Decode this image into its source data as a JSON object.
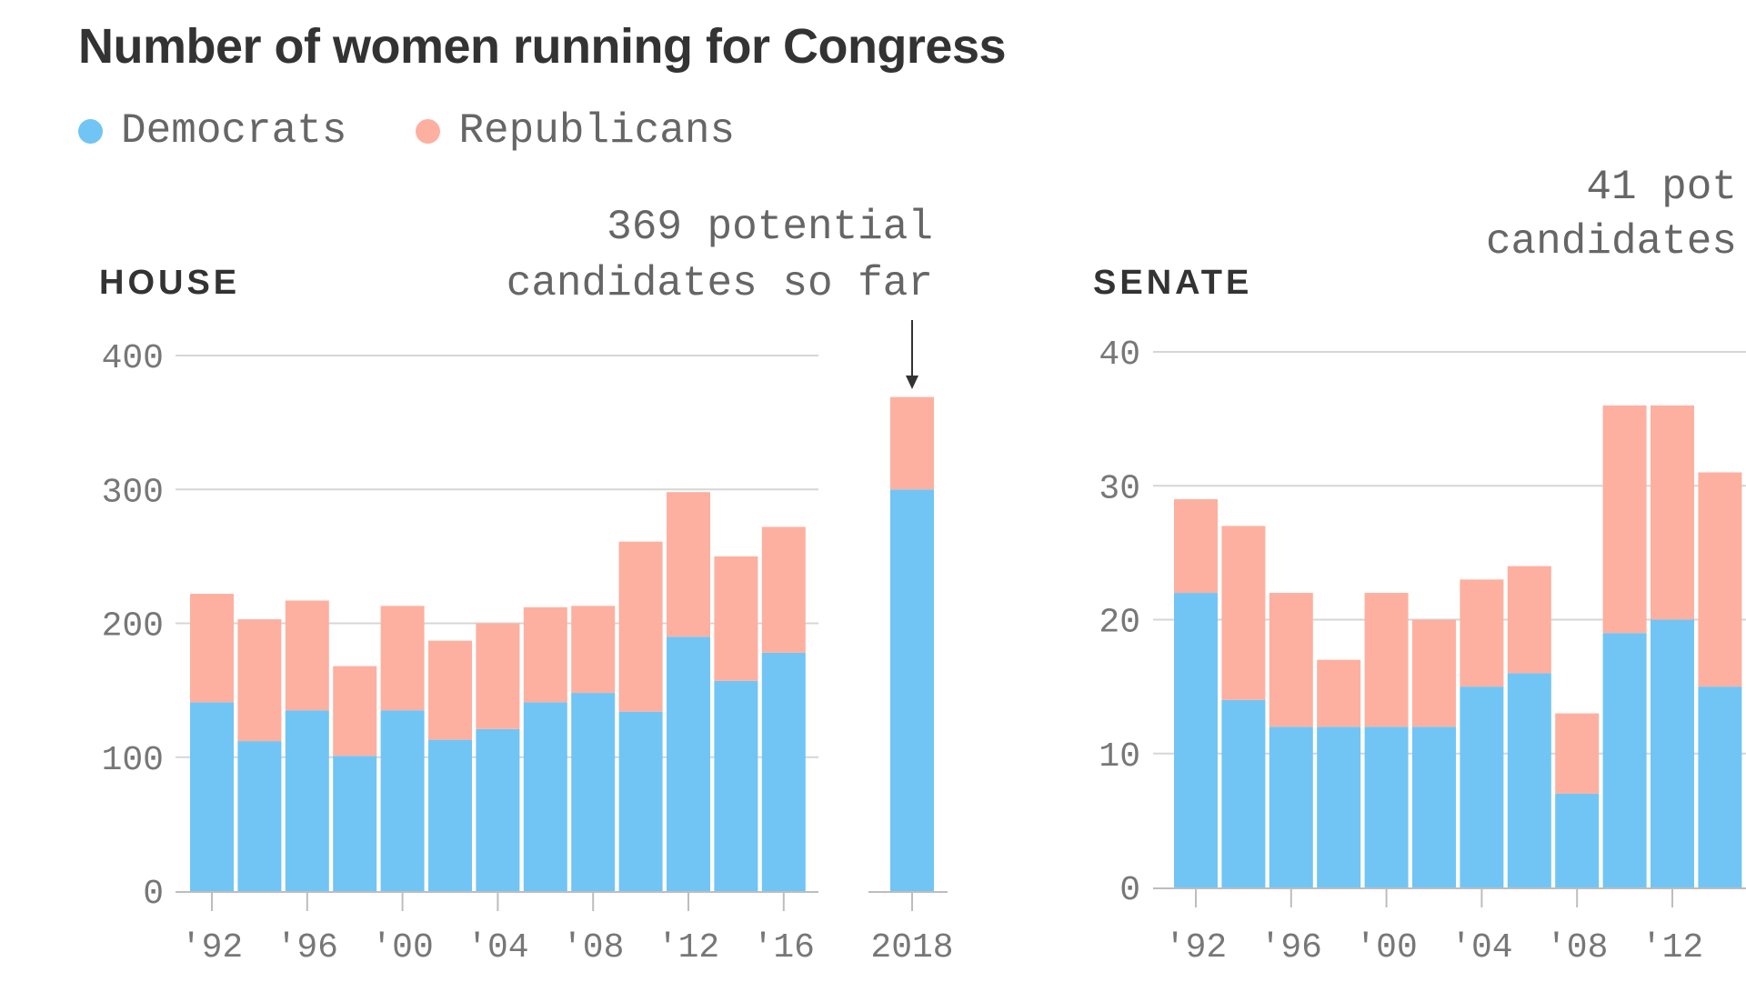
{
  "title": "Number of women running for Congress",
  "colors": {
    "dem": "#70c5f5",
    "rep": "#fdb0a0",
    "grid": "#d6d6d6",
    "axis": "#bdbdbd",
    "arrow": "#333333"
  },
  "legend": [
    {
      "label": "Democrats",
      "color": "#70c5f5"
    },
    {
      "label": "Republicans",
      "color": "#fdb0a0"
    }
  ],
  "chart_data": [
    {
      "type": "bar",
      "stacked": true,
      "title": "HOUSE",
      "categories": [
        "1992",
        "1994",
        "1996",
        "1998",
        "2000",
        "2002",
        "2004",
        "2006",
        "2008",
        "2010",
        "2012",
        "2014",
        "2016",
        "2018"
      ],
      "x_tick_labels": [
        "'92",
        "'96",
        "'00",
        "'04",
        "'08",
        "'12",
        "'16",
        "2018"
      ],
      "series": [
        {
          "name": "Democrats",
          "values": [
            141,
            112,
            135,
            101,
            135,
            113,
            121,
            141,
            148,
            134,
            190,
            157,
            178,
            300
          ]
        },
        {
          "name": "Republicans",
          "values": [
            81,
            91,
            82,
            67,
            78,
            74,
            79,
            71,
            65,
            127,
            108,
            93,
            94,
            69
          ]
        }
      ],
      "ylim": [
        0,
        400
      ],
      "y_ticks": [
        0,
        100,
        200,
        300,
        400
      ],
      "grid": true,
      "annotation": {
        "lines": [
          "369 potential",
          "candidates so far"
        ],
        "target": "2018"
      }
    },
    {
      "type": "bar",
      "stacked": true,
      "title": "SENATE",
      "categories": [
        "1992",
        "1994",
        "1996",
        "1998",
        "2000",
        "2002",
        "2004",
        "2006",
        "2008",
        "2010",
        "2012",
        "2014"
      ],
      "x_tick_labels": [
        "'92",
        "'96",
        "'00",
        "'04",
        "'08",
        "'12",
        "'"
      ],
      "series": [
        {
          "name": "Democrats",
          "values": [
            22,
            14,
            12,
            12,
            12,
            12,
            15,
            16,
            7,
            19,
            20,
            15
          ]
        },
        {
          "name": "Republicans",
          "values": [
            7,
            13,
            10,
            5,
            10,
            8,
            8,
            8,
            6,
            17,
            16,
            16
          ]
        }
      ],
      "ylim": [
        0,
        40
      ],
      "y_ticks": [
        0,
        10,
        20,
        30,
        40
      ],
      "grid": true,
      "annotation": {
        "lines": [
          "41 pot",
          "candidates"
        ]
      }
    }
  ]
}
